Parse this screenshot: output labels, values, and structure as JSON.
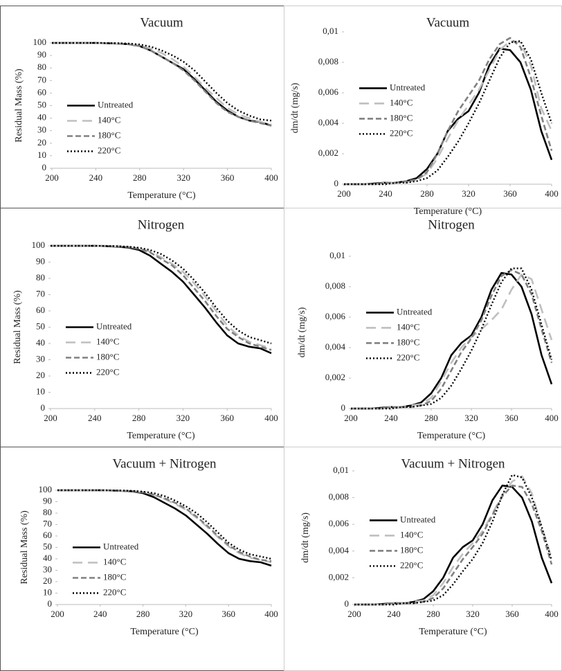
{
  "chart_data": [
    {
      "type": "line",
      "title": "Vacuum",
      "x_label": "Temperature (°C)",
      "y_label": "Residual Mass (%)",
      "x": [
        200,
        210,
        220,
        230,
        240,
        250,
        260,
        270,
        280,
        290,
        300,
        310,
        320,
        330,
        340,
        350,
        360,
        370,
        380,
        390,
        400
      ],
      "xlim": [
        200,
        400
      ],
      "xticks": [
        200,
        240,
        280,
        320,
        360,
        400
      ],
      "ylim": [
        0,
        100
      ],
      "yticks": [
        0,
        10,
        20,
        30,
        40,
        50,
        60,
        70,
        80,
        90,
        100
      ],
      "legend": "left",
      "series": [
        {
          "name": "Untreated",
          "color": "#000000",
          "style": "solid",
          "values": [
            100,
            100,
            100,
            100,
            100,
            99.8,
            99.5,
            99,
            97.5,
            94,
            89,
            84,
            79,
            71,
            62,
            53,
            46,
            41,
            38,
            37,
            34
          ]
        },
        {
          "name": "140°C",
          "color": "#bfbfbf",
          "style": "long-dash",
          "values": [
            100,
            100,
            100,
            100,
            100,
            99.9,
            99.6,
            99.2,
            98,
            95.5,
            92,
            87,
            81,
            73,
            64,
            56,
            48,
            43,
            40,
            37,
            35
          ]
        },
        {
          "name": "180°C",
          "color": "#808080",
          "style": "dash",
          "values": [
            100,
            100,
            100,
            100,
            100,
            99.8,
            99.5,
            99,
            97.5,
            94,
            89,
            84,
            78,
            70,
            61,
            52,
            45,
            41,
            38,
            36,
            34
          ]
        },
        {
          "name": "220°C",
          "color": "#000000",
          "style": "dot",
          "values": [
            100,
            100,
            100,
            100,
            100,
            99.9,
            99.8,
            99.5,
            98.8,
            97,
            94,
            90,
            85,
            78,
            69,
            60,
            52,
            46,
            42,
            39,
            38
          ]
        }
      ]
    },
    {
      "type": "line",
      "title": "Vacuum",
      "x_label": "Temperature (°C)",
      "y_label": "dm/dt (mg/s)",
      "x": [
        200,
        210,
        220,
        230,
        240,
        250,
        260,
        270,
        280,
        290,
        300,
        310,
        320,
        330,
        340,
        350,
        360,
        370,
        380,
        390,
        400
      ],
      "xlim": [
        200,
        400
      ],
      "xticks": [
        200,
        240,
        280,
        320,
        360,
        400
      ],
      "ylim": [
        0,
        0.01
      ],
      "yticks": [
        0,
        {
          "value": 0.002,
          "label": "0,002"
        },
        {
          "value": 0.004,
          "label": "0,004"
        },
        {
          "value": 0.006,
          "label": "0,006"
        },
        {
          "value": 0.008,
          "label": "0,008"
        },
        {
          "value": 0.01,
          "label": "0,01"
        }
      ],
      "legend": "left",
      "series": [
        {
          "name": "Untreated",
          "color": "#000000",
          "style": "solid",
          "values": [
            0,
            0,
            0,
            5e-05,
            0.0001,
            0.0001,
            0.0002,
            0.0004,
            0.001,
            0.002,
            0.0035,
            0.0043,
            0.0048,
            0.006,
            0.0078,
            0.0089,
            0.0088,
            0.008,
            0.0062,
            0.0035,
            0.0016
          ]
        },
        {
          "name": "140°C",
          "color": "#bfbfbf",
          "style": "long-dash",
          "values": [
            0,
            0,
            0,
            0,
            0.0001,
            0.0001,
            0.0001,
            0.0003,
            0.0007,
            0.0017,
            0.003,
            0.0042,
            0.0052,
            0.0062,
            0.0075,
            0.0088,
            0.0094,
            0.0093,
            0.0078,
            0.005,
            0.0035
          ]
        },
        {
          "name": "180°C",
          "color": "#808080",
          "style": "dash",
          "values": [
            0,
            0,
            0,
            0,
            0.0001,
            0.0001,
            0.0002,
            0.0003,
            0.0008,
            0.002,
            0.0035,
            0.0048,
            0.0058,
            0.0068,
            0.0082,
            0.0092,
            0.0096,
            0.009,
            0.007,
            0.0045,
            0.0022
          ]
        },
        {
          "name": "220°C",
          "color": "#000000",
          "style": "dot",
          "values": [
            0,
            0,
            0,
            0,
            0,
            0.0001,
            0.0001,
            0.0002,
            0.0004,
            0.0009,
            0.0018,
            0.0028,
            0.004,
            0.0053,
            0.0068,
            0.0083,
            0.0093,
            0.0094,
            0.0082,
            0.006,
            0.004
          ]
        }
      ]
    },
    {
      "type": "line",
      "title": "Nitrogen",
      "x_label": "Temperature (°C)",
      "y_label": "Residual Mass (%)",
      "x": [
        200,
        210,
        220,
        230,
        240,
        250,
        260,
        270,
        280,
        290,
        300,
        310,
        320,
        330,
        340,
        350,
        360,
        370,
        380,
        390,
        400
      ],
      "xlim": [
        200,
        400
      ],
      "xticks": [
        200,
        240,
        280,
        320,
        360,
        400
      ],
      "ylim": [
        0,
        100
      ],
      "yticks": [
        0,
        10,
        20,
        30,
        40,
        50,
        60,
        70,
        80,
        90,
        100
      ],
      "legend": "left",
      "series": [
        {
          "name": "Untreated",
          "color": "#000000",
          "style": "solid",
          "values": [
            100,
            100,
            100,
            100,
            100,
            99.8,
            99.5,
            99,
            97.5,
            94,
            89,
            84,
            78,
            70,
            62,
            53,
            45,
            40,
            38,
            37,
            34
          ]
        },
        {
          "name": "140°C",
          "color": "#bfbfbf",
          "style": "long-dash",
          "values": [
            100,
            100,
            100,
            100,
            100,
            99.9,
            99.7,
            99.4,
            98.5,
            96.5,
            93,
            89,
            84,
            77,
            69,
            60,
            51,
            45,
            41,
            39,
            37
          ]
        },
        {
          "name": "180°C",
          "color": "#808080",
          "style": "dash",
          "values": [
            100,
            100,
            100,
            100,
            100,
            99.9,
            99.7,
            99.3,
            98.2,
            96,
            92,
            88,
            82,
            74,
            66,
            57,
            49,
            44,
            40,
            38,
            36
          ]
        },
        {
          "name": "220°C",
          "color": "#000000",
          "style": "dot",
          "values": [
            100,
            100,
            100,
            100,
            100,
            99.9,
            99.8,
            99.5,
            98.8,
            97.5,
            95,
            91,
            86,
            79,
            71,
            62,
            54,
            48,
            44,
            42,
            40
          ]
        }
      ]
    },
    {
      "type": "line",
      "title": "Nitrogen",
      "x_label": "Temperature (°C)",
      "y_label": "dm/dt (mg/s)",
      "x": [
        200,
        210,
        220,
        230,
        240,
        250,
        260,
        270,
        280,
        290,
        300,
        310,
        320,
        330,
        340,
        350,
        360,
        370,
        380,
        390,
        400
      ],
      "xlim": [
        200,
        400
      ],
      "xticks": [
        200,
        240,
        280,
        320,
        360,
        400
      ],
      "ylim": [
        0,
        0.01
      ],
      "yticks": [
        0,
        {
          "value": 0.002,
          "label": "0,002"
        },
        {
          "value": 0.004,
          "label": "0,004"
        },
        {
          "value": 0.006,
          "label": "0,006"
        },
        {
          "value": 0.008,
          "label": "0,008"
        },
        {
          "value": 0.01,
          "label": "0,01"
        }
      ],
      "legend": "left",
      "series": [
        {
          "name": "Untreated",
          "color": "#000000",
          "style": "solid",
          "values": [
            0,
            0,
            0,
            5e-05,
            0.0001,
            0.0001,
            0.0002,
            0.0004,
            0.001,
            0.002,
            0.0035,
            0.0043,
            0.0048,
            0.006,
            0.0078,
            0.0089,
            0.0088,
            0.008,
            0.0062,
            0.0035,
            0.0016
          ]
        },
        {
          "name": "140°C",
          "color": "#bfbfbf",
          "style": "long-dash",
          "values": [
            0,
            0,
            0,
            0,
            0.0001,
            0.0001,
            0.0002,
            0.0003,
            0.0007,
            0.0018,
            0.003,
            0.004,
            0.0047,
            0.0052,
            0.0058,
            0.0065,
            0.0078,
            0.0088,
            0.0085,
            0.0065,
            0.0045
          ]
        },
        {
          "name": "180°C",
          "color": "#808080",
          "style": "dash",
          "values": [
            0,
            0,
            0,
            0,
            0.0001,
            0.0001,
            0.0001,
            0.0002,
            0.0005,
            0.0013,
            0.0025,
            0.0037,
            0.0046,
            0.0058,
            0.0074,
            0.0087,
            0.0091,
            0.0088,
            0.0075,
            0.0052,
            0.003
          ]
        },
        {
          "name": "220°C",
          "color": "#000000",
          "style": "dot",
          "values": [
            0,
            0,
            0,
            0,
            0,
            0.0001,
            0.0001,
            0.0002,
            0.0003,
            0.0007,
            0.0015,
            0.0026,
            0.0038,
            0.0052,
            0.0068,
            0.0083,
            0.0092,
            0.0092,
            0.0078,
            0.0055,
            0.0032
          ]
        }
      ]
    },
    {
      "type": "line",
      "title": "Vacuum + Nitrogen",
      "x_label": "Temperature (°C)",
      "y_label": "Residual Mass (%)",
      "x": [
        200,
        210,
        220,
        230,
        240,
        250,
        260,
        270,
        280,
        290,
        300,
        310,
        320,
        330,
        340,
        350,
        360,
        370,
        380,
        390,
        400
      ],
      "xlim": [
        200,
        400
      ],
      "xticks": [
        200,
        240,
        280,
        320,
        360,
        400
      ],
      "ylim": [
        0,
        100
      ],
      "yticks": [
        0,
        10,
        20,
        30,
        40,
        50,
        60,
        70,
        80,
        90,
        100
      ],
      "legend": "left",
      "series": [
        {
          "name": "Untreated",
          "color": "#000000",
          "style": "solid",
          "values": [
            100,
            100,
            100,
            100,
            100,
            99.8,
            99.5,
            99,
            97.5,
            94,
            89,
            84,
            78,
            70,
            62,
            53,
            45,
            40,
            38,
            37,
            34
          ]
        },
        {
          "name": "140°C",
          "color": "#bfbfbf",
          "style": "long-dash",
          "values": [
            100,
            100,
            100,
            100,
            100,
            99.9,
            99.7,
            99.3,
            98.3,
            96,
            92.5,
            88,
            83,
            76,
            68,
            59,
            51,
            45,
            41,
            39,
            37
          ]
        },
        {
          "name": "180°C",
          "color": "#808080",
          "style": "dash",
          "values": [
            100,
            100,
            100,
            100,
            100,
            99.9,
            99.7,
            99.3,
            98.3,
            96.2,
            93,
            89,
            84,
            77,
            69,
            60,
            52,
            46,
            42,
            39,
            38
          ]
        },
        {
          "name": "220°C",
          "color": "#000000",
          "style": "dot",
          "values": [
            100,
            100,
            100,
            100,
            100,
            99.9,
            99.8,
            99.5,
            98.8,
            97.5,
            95,
            91,
            86,
            80,
            72,
            63,
            54,
            48,
            44,
            42,
            40
          ]
        }
      ]
    },
    {
      "type": "line",
      "title": "Vacuum + Nitrogen",
      "x_label": "Temperature (°C)",
      "y_label": "dm/dt (mg/s)",
      "x": [
        200,
        210,
        220,
        230,
        240,
        250,
        260,
        270,
        280,
        290,
        300,
        310,
        320,
        330,
        340,
        350,
        360,
        370,
        380,
        390,
        400
      ],
      "xlim": [
        200,
        400
      ],
      "xticks": [
        200,
        240,
        280,
        320,
        360,
        400
      ],
      "ylim": [
        0,
        0.01
      ],
      "yticks": [
        0,
        {
          "value": 0.002,
          "label": "0,002"
        },
        {
          "value": 0.004,
          "label": "0,004"
        },
        {
          "value": 0.006,
          "label": "0,006"
        },
        {
          "value": 0.008,
          "label": "0,008"
        },
        {
          "value": 0.01,
          "label": "0,01"
        }
      ],
      "legend": "left",
      "series": [
        {
          "name": "Untreated",
          "color": "#000000",
          "style": "solid",
          "values": [
            0,
            0,
            0,
            5e-05,
            0.0001,
            0.0001,
            0.0002,
            0.0004,
            0.001,
            0.002,
            0.0035,
            0.0043,
            0.0048,
            0.006,
            0.0078,
            0.0089,
            0.0088,
            0.008,
            0.0062,
            0.0035,
            0.0016
          ]
        },
        {
          "name": "140°C",
          "color": "#bfbfbf",
          "style": "long-dash",
          "values": [
            0,
            0,
            0,
            0,
            0.0001,
            0.0001,
            0.0002,
            0.0003,
            0.0007,
            0.0016,
            0.0028,
            0.0038,
            0.0046,
            0.0055,
            0.0068,
            0.0082,
            0.0092,
            0.0096,
            0.0083,
            0.0058,
            0.0035
          ]
        },
        {
          "name": "180°C",
          "color": "#808080",
          "style": "dash",
          "values": [
            0,
            0,
            0,
            0,
            0.0001,
            0.0001,
            0.0001,
            0.0002,
            0.0005,
            0.0012,
            0.0023,
            0.0034,
            0.0043,
            0.0053,
            0.0067,
            0.0081,
            0.0089,
            0.0088,
            0.0075,
            0.0055,
            0.003
          ]
        },
        {
          "name": "220°C",
          "color": "#000000",
          "style": "dot",
          "values": [
            0,
            0,
            0,
            0,
            0,
            0.0001,
            0.0001,
            0.0002,
            0.0003,
            0.0007,
            0.0015,
            0.0025,
            0.0034,
            0.0046,
            0.0062,
            0.0082,
            0.0097,
            0.0095,
            0.008,
            0.0058,
            0.0033
          ]
        }
      ]
    }
  ]
}
